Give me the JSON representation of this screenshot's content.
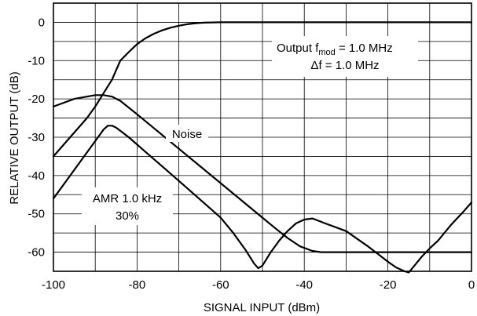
{
  "chart_data": {
    "type": "line",
    "title": "",
    "xlabel": "SIGNAL INPUT (dBm)",
    "ylabel": "RELATIVE OUTPUT (dB)",
    "xlim": [
      -100,
      0
    ],
    "ylim": [
      -65,
      5
    ],
    "grid": true,
    "x_ticks": [
      -100,
      -80,
      -60,
      -40,
      -20,
      0
    ],
    "y_ticks": [
      0,
      -10,
      -20,
      -30,
      -40,
      -50,
      -60
    ],
    "x_tick_labels": [
      "-100",
      "-80",
      "-60",
      "-40",
      "-20",
      "0"
    ],
    "y_tick_labels": [
      "0",
      "-10",
      "-20",
      "-30",
      "-40",
      "-50",
      "-60"
    ],
    "series": [
      {
        "name": "",
        "x": [
          -100,
          -96,
          -92,
          -90,
          -88,
          -86,
          -84,
          -82,
          -80,
          -78,
          -76,
          -74,
          -72,
          -70,
          -68,
          -66,
          -64,
          -62,
          -60,
          -50,
          -40,
          -30,
          -20,
          -10,
          0
        ],
        "y": [
          -35,
          -30,
          -25,
          -22,
          -18.5,
          -15,
          -10,
          -7.8,
          -5.7,
          -4.2,
          -3.0,
          -2.1,
          -1.4,
          -0.9,
          -0.5,
          -0.25,
          -0.1,
          -0.03,
          0,
          0,
          0,
          0,
          0,
          0,
          0
        ]
      },
      {
        "name": "Noise",
        "x": [
          -100,
          -95,
          -90,
          -88,
          -86,
          -84,
          -80,
          -75,
          -70,
          -65,
          -60,
          -55,
          -50,
          -47,
          -44,
          -41,
          -38,
          -36,
          -30,
          -20,
          -10,
          0
        ],
        "y": [
          -22,
          -20,
          -19,
          -19,
          -19.4,
          -20.5,
          -24,
          -28.5,
          -33,
          -37.5,
          -42,
          -46.5,
          -51,
          -53.7,
          -56.3,
          -58.5,
          -59.7,
          -60,
          -60,
          -60,
          -60,
          -60
        ]
      },
      {
        "name": "AMR 1.0 kHz 30%",
        "x": [
          -100,
          -96,
          -92,
          -90,
          -88,
          -87,
          -86,
          -85,
          -82,
          -78,
          -74,
          -70,
          -65,
          -60,
          -57,
          -54,
          -52,
          -51,
          -50,
          -48,
          -46,
          -44,
          -42,
          -40,
          -38,
          -35,
          -30,
          -25,
          -22,
          -20,
          -18,
          -16,
          -15,
          -14,
          -12,
          -10,
          -8,
          -5,
          -2,
          0
        ],
        "y": [
          -46,
          -40,
          -34,
          -31,
          -28,
          -27,
          -27,
          -27.5,
          -30,
          -33.8,
          -37.6,
          -41.4,
          -46.2,
          -51,
          -55,
          -59.5,
          -63,
          -64.2,
          -63.5,
          -60,
          -57,
          -54.5,
          -52.5,
          -51.5,
          -51.2,
          -52.5,
          -54.5,
          -58.3,
          -60.8,
          -62.5,
          -64,
          -65,
          -65.3,
          -64,
          -61.3,
          -59,
          -57,
          -53,
          -49.5,
          -47
        ]
      }
    ],
    "annotations": {
      "output_prefix": "Output f",
      "output_sub": "mod",
      "output_suffix": " = 1.0 MHz",
      "delta_f": "Δf = 1.0 MHz",
      "noise": "Noise",
      "amr_line1": "AMR 1.0 kHz",
      "amr_line2": "30%"
    }
  },
  "colors": {
    "line": "#000000",
    "grid": "#000000",
    "background": "#ffffff"
  }
}
